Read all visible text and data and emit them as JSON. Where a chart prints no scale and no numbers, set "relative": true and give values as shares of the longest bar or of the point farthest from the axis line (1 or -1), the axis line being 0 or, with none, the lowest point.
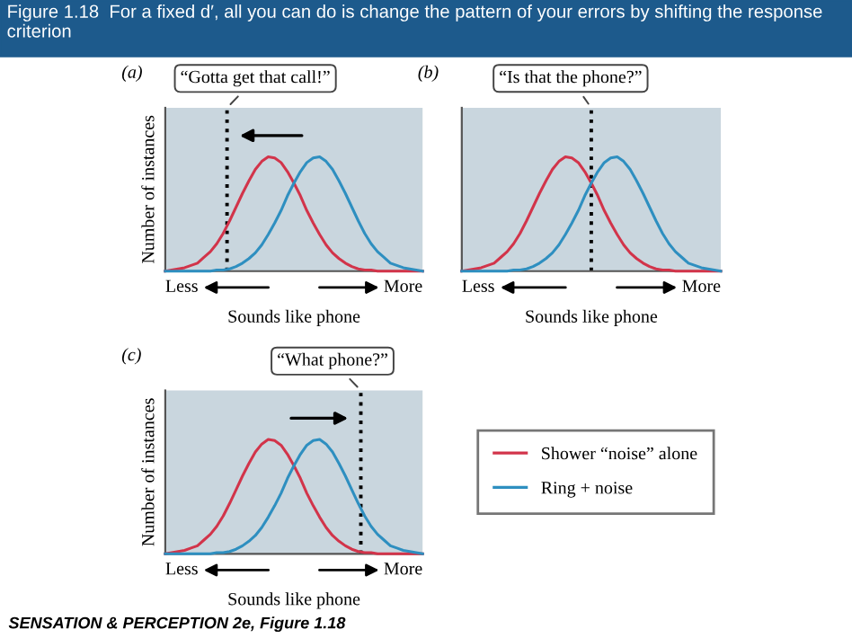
{
  "chart_data": [
    {
      "type": "line",
      "relative": true,
      "title": "Figure 1.18  For a fixed d′, all you can do is change the pattern of your errors by shifting the response criterion",
      "xlabel": "Sounds like phone",
      "ylabel": "Number of instances",
      "legend": false,
      "categories": [
        null,
        null,
        null,
        null,
        null,
        null,
        null,
        null,
        null,
        null,
        null,
        null,
        null,
        null,
        null,
        null,
        null,
        null,
        null,
        null,
        null,
        null,
        null,
        null,
        null,
        null,
        null,
        null,
        null,
        null,
        null,
        null,
        null,
        null,
        null,
        null,
        null,
        null,
        null,
        null,
        null
      ],
      "series": [
        {
          "color": "#d2344a",
          "values": [
            0.0,
            0.01,
            0.02,
            0.03,
            0.05,
            0.07,
            0.12,
            0.17,
            0.24,
            0.33,
            0.44,
            0.56,
            0.68,
            0.79,
            0.89,
            0.96,
            1.0,
            0.99,
            0.95,
            0.87,
            0.77,
            0.66,
            0.53,
            0.42,
            0.32,
            0.23,
            0.16,
            0.11,
            0.07,
            0.04,
            0.02,
            0.01,
            0.01,
            0.0,
            0.0,
            0.0,
            0.0,
            0.0,
            0.0,
            0.0,
            0.0
          ]
        },
        {
          "color": "#2e8fc0",
          "values": [
            0.0,
            0.0,
            0.0,
            0.0,
            0.0,
            0.0,
            0.0,
            0.0,
            0.01,
            0.01,
            0.02,
            0.04,
            0.07,
            0.11,
            0.16,
            0.23,
            0.32,
            0.42,
            0.53,
            0.66,
            0.77,
            0.87,
            0.95,
            0.99,
            1.0,
            0.96,
            0.89,
            0.79,
            0.68,
            0.56,
            0.44,
            0.33,
            0.24,
            0.17,
            0.12,
            0.07,
            0.05,
            0.03,
            0.02,
            0.01,
            0.0
          ]
        }
      ],
      "annotations": [
        "(a)",
        "“Gotta get that call!”",
        "Less",
        "More"
      ]
    },
    {
      "type": "line",
      "relative": true,
      "xlabel": "Sounds like phone",
      "legend": false,
      "categories": [
        null,
        null,
        null,
        null,
        null,
        null,
        null,
        null,
        null,
        null,
        null,
        null,
        null,
        null,
        null,
        null,
        null,
        null,
        null,
        null,
        null,
        null,
        null,
        null,
        null,
        null,
        null,
        null,
        null,
        null,
        null,
        null,
        null,
        null,
        null,
        null,
        null,
        null,
        null,
        null,
        null
      ],
      "series": [
        {
          "color": "#d2344a",
          "values": [
            0.0,
            0.01,
            0.02,
            0.03,
            0.05,
            0.07,
            0.12,
            0.17,
            0.24,
            0.33,
            0.44,
            0.56,
            0.68,
            0.79,
            0.89,
            0.96,
            1.0,
            0.99,
            0.95,
            0.87,
            0.77,
            0.66,
            0.53,
            0.42,
            0.32,
            0.23,
            0.16,
            0.11,
            0.07,
            0.04,
            0.02,
            0.01,
            0.01,
            0.0,
            0.0,
            0.0,
            0.0,
            0.0,
            0.0,
            0.0,
            0.0
          ]
        },
        {
          "color": "#2e8fc0",
          "values": [
            0.0,
            0.0,
            0.0,
            0.0,
            0.0,
            0.0,
            0.0,
            0.0,
            0.01,
            0.01,
            0.02,
            0.04,
            0.07,
            0.11,
            0.16,
            0.23,
            0.32,
            0.42,
            0.53,
            0.66,
            0.77,
            0.87,
            0.95,
            0.99,
            1.0,
            0.96,
            0.89,
            0.79,
            0.68,
            0.56,
            0.44,
            0.33,
            0.24,
            0.17,
            0.12,
            0.07,
            0.05,
            0.03,
            0.02,
            0.01,
            0.0
          ]
        }
      ],
      "annotations": [
        "(b)",
        "“Is that the phone?”",
        "Less",
        "More"
      ]
    },
    {
      "type": "line",
      "relative": true,
      "xlabel": "Sounds like phone",
      "ylabel": "Number of instances",
      "legend": "right",
      "categories": [
        null,
        null,
        null,
        null,
        null,
        null,
        null,
        null,
        null,
        null,
        null,
        null,
        null,
        null,
        null,
        null,
        null,
        null,
        null,
        null,
        null,
        null,
        null,
        null,
        null,
        null,
        null,
        null,
        null,
        null,
        null,
        null,
        null,
        null,
        null,
        null,
        null,
        null,
        null,
        null,
        null
      ],
      "series": [
        {
          "name": "Shower “noise” alone",
          "color": "#d2344a",
          "values": [
            0.0,
            0.01,
            0.02,
            0.03,
            0.05,
            0.07,
            0.12,
            0.17,
            0.24,
            0.33,
            0.44,
            0.56,
            0.68,
            0.79,
            0.89,
            0.96,
            1.0,
            0.99,
            0.95,
            0.87,
            0.77,
            0.66,
            0.53,
            0.42,
            0.32,
            0.23,
            0.16,
            0.11,
            0.07,
            0.04,
            0.02,
            0.01,
            0.01,
            0.0,
            0.0,
            0.0,
            0.0,
            0.0,
            0.0,
            0.0,
            0.0
          ]
        },
        {
          "name": "Ring + noise",
          "color": "#2e8fc0",
          "values": [
            0.0,
            0.0,
            0.0,
            0.0,
            0.0,
            0.0,
            0.0,
            0.0,
            0.01,
            0.01,
            0.02,
            0.04,
            0.07,
            0.11,
            0.16,
            0.23,
            0.32,
            0.42,
            0.53,
            0.66,
            0.77,
            0.87,
            0.95,
            0.99,
            1.0,
            0.96,
            0.89,
            0.79,
            0.68,
            0.56,
            0.44,
            0.33,
            0.24,
            0.17,
            0.12,
            0.07,
            0.05,
            0.03,
            0.02,
            0.01,
            0.0
          ]
        }
      ],
      "annotations": [
        "(c)",
        "“What phone?”",
        "Less",
        "More",
        "SENSATION & PERCEPTION 2e, Figure 1.18"
      ]
    }
  ]
}
